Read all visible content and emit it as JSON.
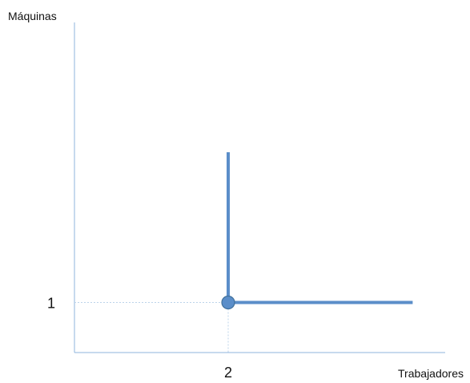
{
  "chart_data": {
    "type": "line",
    "title": "",
    "xlabel": "Trabajadores",
    "ylabel": "Máquinas",
    "xlim": [
      0,
      4.4
    ],
    "ylim": [
      0,
      4.3
    ],
    "x_ticks": [
      {
        "value": 2,
        "label": "2"
      }
    ],
    "y_ticks": [
      {
        "value": 1,
        "label": "1"
      }
    ],
    "grid": false,
    "series": [
      {
        "points": [
          [
            2,
            4
          ],
          [
            2,
            1
          ],
          [
            4.4,
            1
          ]
        ],
        "color": "#5b8ec9"
      }
    ],
    "highlight_point": {
      "x": 2,
      "y": 1,
      "color": "#5b8ec9"
    },
    "guide_lines": true,
    "axis_color": "#8fb4de",
    "guide_color": "#bcd3ea"
  }
}
